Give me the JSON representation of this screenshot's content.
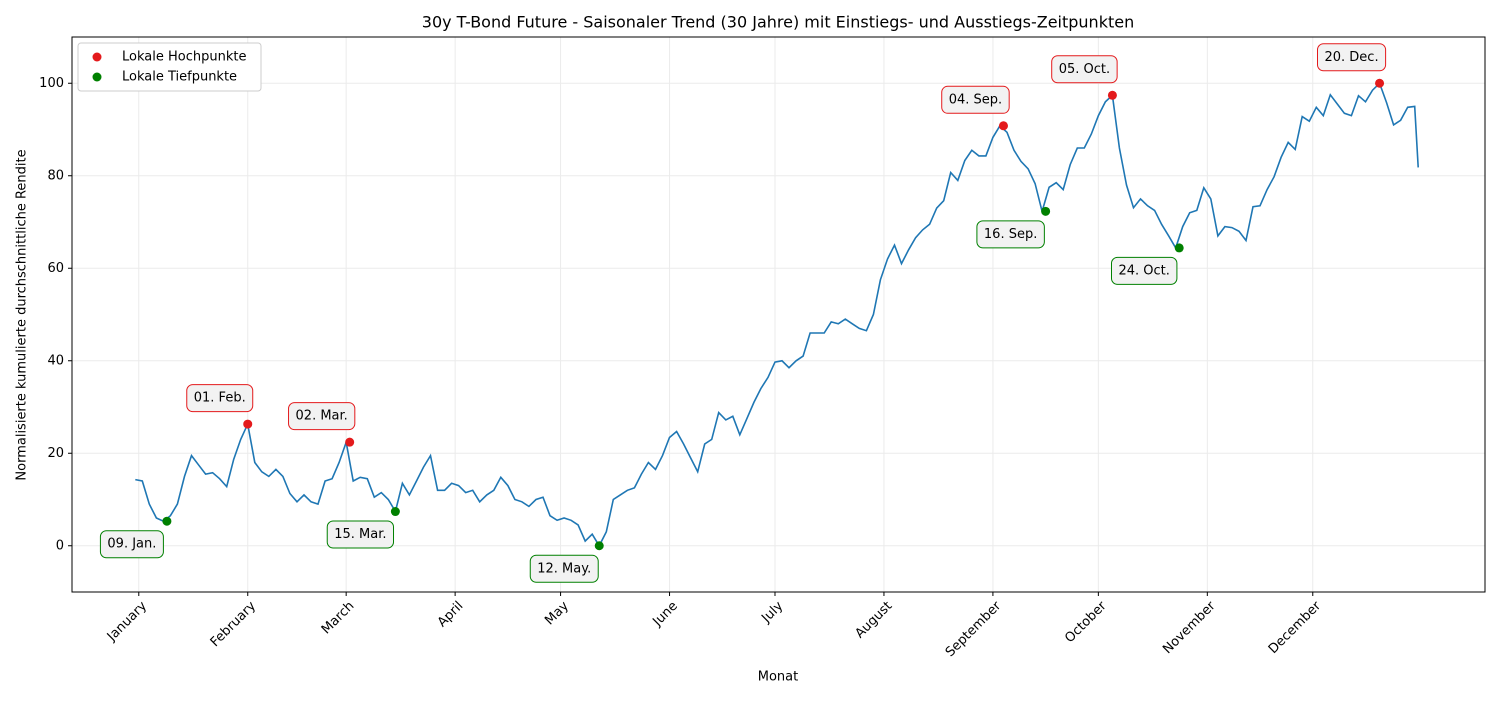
{
  "chart_data": {
    "type": "line",
    "title": "30y T-Bond Future - Saisonaler Trend (30 Jahre) mit Einstiegs- und Ausstiegs-Zeitpunkten",
    "x_label": "Monat",
    "y_label": "Normalisierte kumulierte durchschnittliche Rendite",
    "color": "#1f77b4",
    "x": [
      0,
      2,
      4,
      6,
      8,
      10,
      12,
      14,
      16,
      18,
      20,
      22,
      24,
      26,
      28,
      30,
      32,
      34,
      36,
      38,
      40,
      42,
      44,
      46,
      48,
      50,
      52,
      54,
      56,
      58,
      60,
      62,
      64,
      66,
      68,
      70,
      72,
      74,
      76,
      78,
      80,
      82,
      84,
      86,
      88,
      90,
      92,
      94,
      96,
      98,
      100,
      102,
      104,
      106,
      108,
      110,
      112,
      114,
      116,
      118,
      120,
      122,
      124,
      126,
      128,
      130,
      132,
      134,
      136,
      138,
      140,
      142,
      144,
      146,
      148,
      150,
      152,
      154,
      156,
      158,
      160,
      162,
      164,
      166,
      168,
      170,
      172,
      174,
      176,
      178,
      180,
      182,
      184,
      186,
      188,
      190,
      192,
      194,
      196,
      198,
      200,
      202,
      204,
      206,
      208,
      210,
      212,
      214,
      216,
      218,
      220,
      222,
      224,
      226,
      228,
      230,
      232,
      234,
      236,
      238,
      240,
      242,
      244,
      246,
      248,
      250,
      252,
      254,
      256,
      258,
      260,
      262,
      264,
      266,
      268,
      270,
      272,
      274,
      276,
      278,
      280,
      282,
      284,
      286,
      288,
      290,
      292,
      294,
      296,
      298,
      300,
      302,
      304,
      306,
      308,
      310,
      312,
      314,
      316,
      318,
      320,
      322,
      324,
      326,
      328,
      330,
      332,
      334,
      336,
      338,
      340,
      342,
      344,
      346,
      348,
      350,
      352,
      354,
      356,
      358,
      360,
      362,
      364,
      365
    ],
    "values": [
      14.3,
      14,
      9,
      6,
      5.3,
      6.5,
      9,
      15,
      19.5,
      17.5,
      15.5,
      15.8,
      14.5,
      12.8,
      18.7,
      23,
      26.3,
      18,
      16,
      15,
      16.5,
      15,
      11.3,
      9.5,
      11,
      9.5,
      9,
      14,
      14.5,
      18,
      22.4,
      14,
      14.8,
      14.5,
      10.5,
      11.5,
      10,
      7.4,
      13.5,
      11,
      14,
      17,
      19.5,
      12,
      12,
      13.5,
      13,
      11.5,
      12,
      9.5,
      11,
      12,
      14.8,
      13,
      10,
      9.5,
      8.5,
      10,
      10.5,
      6.5,
      5.5,
      6,
      5.5,
      4.5,
      1,
      2.5,
      0,
      3,
      10,
      11,
      12,
      12.5,
      15.5,
      18,
      16.5,
      19.5,
      23.4,
      24.7,
      22,
      19,
      16,
      22,
      23,
      28.8,
      27.2,
      28,
      24,
      27.5,
      31,
      34,
      36.4,
      39.7,
      40,
      38.5,
      40,
      41,
      46,
      46,
      46,
      48.4,
      48,
      49,
      48,
      47,
      46.5,
      50,
      57.5,
      62,
      65,
      61,
      64,
      66.6,
      68.3,
      69.5,
      73,
      74.6,
      80.7,
      79,
      83.3,
      85.5,
      84.3,
      84.3,
      88.3,
      90.8,
      89.4,
      85.5,
      83.1,
      81.5,
      78.3,
      72.3,
      77.5,
      78.5,
      77,
      82.4,
      86,
      86,
      89,
      93,
      96,
      97.4,
      86,
      78,
      73.1,
      75,
      73.5,
      72.5,
      69.5,
      67,
      64.4,
      69,
      72,
      72.5,
      77.4,
      75,
      67,
      69,
      68.8,
      68,
      66,
      73.3,
      73.5,
      77,
      79.8,
      84,
      87.2,
      85.7,
      92.8,
      91.8,
      94.8,
      93,
      97.5,
      95.5,
      93.5,
      93,
      97.3,
      96,
      98.5,
      100,
      95.8,
      91,
      92,
      94.8,
      95,
      81.8
    ],
    "markers": [
      {
        "name": "Lokale Hochpunkte",
        "color": "#e41a1c",
        "x": [
          32,
          61,
          247,
          278,
          354
        ],
        "values": [
          26.3,
          22.4,
          90.8,
          97.4,
          100
        ],
        "labels": [
          "01. Feb.",
          "02. Mar.",
          "04. Sep.",
          "05. Oct.",
          "20. Dec."
        ]
      },
      {
        "name": "Lokale Tiefpunkte",
        "color": "#008000",
        "x": [
          9,
          74,
          132,
          259,
          297
        ],
        "values": [
          5.3,
          7.4,
          0,
          72.3,
          64.4
        ],
        "labels": [
          "09. Jan.",
          "15. Mar.",
          "12. May.",
          "16. Sep.",
          "24. Oct."
        ]
      }
    ],
    "xlim": [
      -18,
      384
    ],
    "ylim": [
      -10,
      110
    ],
    "xticks": [
      {
        "value": 1,
        "label": "January"
      },
      {
        "value": 32,
        "label": "February"
      },
      {
        "value": 60,
        "label": "March"
      },
      {
        "value": 91,
        "label": "April"
      },
      {
        "value": 121,
        "label": "May"
      },
      {
        "value": 152,
        "label": "June"
      },
      {
        "value": 182,
        "label": "July"
      },
      {
        "value": 213,
        "label": "August"
      },
      {
        "value": 244,
        "label": "September"
      },
      {
        "value": 274,
        "label": "October"
      },
      {
        "value": 305,
        "label": "November"
      },
      {
        "value": 335,
        "label": "December"
      }
    ],
    "yticks": [
      0,
      20,
      40,
      60,
      80,
      100
    ],
    "grid": true,
    "legend": "upper left"
  }
}
